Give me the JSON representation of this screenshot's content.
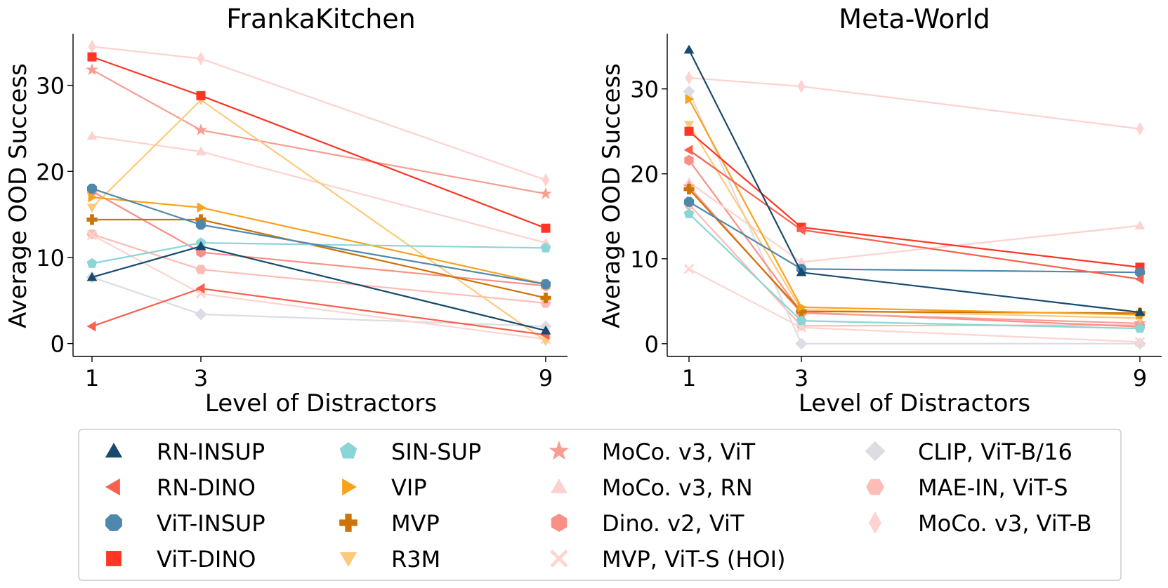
{
  "chart_data": [
    {
      "type": "line",
      "title": "FrankaKitchen",
      "xlabel": "Level of Distractors",
      "ylabel": "Average OOD Success",
      "x": [
        1,
        3,
        9
      ],
      "x_tick_labels": [
        "1",
        "3",
        "9"
      ],
      "y_ticks": [
        0,
        10,
        20,
        30
      ],
      "y_tick_labels": [
        "0",
        "10",
        "20",
        "30"
      ],
      "ylim": [
        -1.5,
        36
      ],
      "series": [
        {
          "name": "RN-INSUP",
          "values": [
            7.7,
            11.3,
            1.5
          ]
        },
        {
          "name": "RN-DINO",
          "values": [
            2.0,
            6.4,
            1.0
          ]
        },
        {
          "name": "ViT-INSUP",
          "values": [
            18.0,
            13.8,
            6.9
          ]
        },
        {
          "name": "ViT-DINO",
          "values": [
            33.3,
            28.8,
            13.4
          ]
        },
        {
          "name": "SIN-SUP",
          "values": [
            9.3,
            11.7,
            11.1
          ]
        },
        {
          "name": "VIP",
          "values": [
            17.0,
            15.8,
            6.9
          ]
        },
        {
          "name": "MVP",
          "values": [
            14.4,
            14.4,
            5.3
          ]
        },
        {
          "name": "R3M",
          "values": [
            15.8,
            28.3,
            0.3
          ]
        },
        {
          "name": "MoCo. v3, ViT",
          "values": [
            31.8,
            24.8,
            17.4
          ]
        },
        {
          "name": "MoCo. v3, RN",
          "values": [
            24.1,
            22.3,
            11.7
          ]
        },
        {
          "name": "Dino. v2, ViT",
          "values": [
            17.7,
            10.6,
            6.7
          ]
        },
        {
          "name": "MVP, ViT-S (HOI)",
          "values": [
            12.6,
            5.8,
            0.5
          ]
        },
        {
          "name": "CLIP, ViT-B/16",
          "values": [
            7.7,
            3.4,
            2.0
          ]
        },
        {
          "name": "MAE-IN, ViT-S",
          "values": [
            12.7,
            8.6,
            4.7
          ]
        },
        {
          "name": "MoCo. v3, ViT-B",
          "values": [
            34.5,
            33.1,
            19.0
          ]
        }
      ]
    },
    {
      "type": "line",
      "title": "Meta-World",
      "xlabel": "Level of Distractors",
      "ylabel": "Average OOD Success",
      "x": [
        1,
        3,
        9
      ],
      "x_tick_labels": [
        "1",
        "3",
        "9"
      ],
      "y_ticks": [
        0,
        10,
        20,
        30
      ],
      "y_tick_labels": [
        "0",
        "10",
        "20",
        "30"
      ],
      "ylim": [
        -1.5,
        36.5
      ],
      "series": [
        {
          "name": "RN-INSUP",
          "values": [
            34.6,
            8.4,
            3.7
          ]
        },
        {
          "name": "RN-DINO",
          "values": [
            22.8,
            13.4,
            7.6
          ]
        },
        {
          "name": "ViT-INSUP",
          "values": [
            16.7,
            8.8,
            8.4
          ]
        },
        {
          "name": "ViT-DINO",
          "values": [
            25.0,
            13.7,
            9.0
          ]
        },
        {
          "name": "SIN-SUP",
          "values": [
            15.3,
            2.7,
            1.8
          ]
        },
        {
          "name": "VIP",
          "values": [
            28.8,
            4.3,
            3.4
          ]
        },
        {
          "name": "MVP",
          "values": [
            18.2,
            3.8,
            3.6
          ]
        },
        {
          "name": "R3M",
          "values": [
            25.8,
            4.0,
            3.0
          ]
        },
        {
          "name": "MoCo. v3, ViT",
          "values": [
            18.5,
            3.6,
            2.4
          ]
        },
        {
          "name": "MoCo. v3, RN",
          "values": [
            19.0,
            9.6,
            13.9
          ]
        },
        {
          "name": "Dino. v2, ViT",
          "values": [
            21.6,
            3.7,
            2.0
          ]
        },
        {
          "name": "MVP, ViT-S (HOI)",
          "values": [
            8.8,
            1.9,
            0.2
          ]
        },
        {
          "name": "CLIP, ViT-B/16",
          "values": [
            29.7,
            0.0,
            0.0
          ]
        },
        {
          "name": "MAE-IN, ViT-S",
          "values": [
            16.4,
            2.1,
            2.2
          ]
        },
        {
          "name": "MoCo. v3, ViT-B",
          "values": [
            31.3,
            30.3,
            25.3
          ]
        }
      ]
    }
  ],
  "legend": {
    "placement": "bottom",
    "columns": 4,
    "entries": [
      {
        "label": "RN-INSUP",
        "color": "#174a6e",
        "marker": "triangle-up"
      },
      {
        "label": "RN-DINO",
        "color": "#f9604d",
        "marker": "triangle-left"
      },
      {
        "label": "ViT-INSUP",
        "color": "#4f88ad",
        "marker": "octagon"
      },
      {
        "label": "ViT-DINO",
        "color": "#ff3526",
        "marker": "square"
      },
      {
        "label": "SIN-SUP",
        "color": "#8ad5d6",
        "marker": "pentagon"
      },
      {
        "label": "VIP",
        "color": "#f9a21d",
        "marker": "triangle-right"
      },
      {
        "label": "MVP",
        "color": "#cc7408",
        "marker": "plus"
      },
      {
        "label": "R3M",
        "color": "#fdca7c",
        "marker": "triangle-down"
      },
      {
        "label": "MoCo. v3, ViT",
        "color": "#f89d91",
        "marker": "star"
      },
      {
        "label": "MoCo. v3, RN",
        "color": "#fdd1cf",
        "marker": "triangle-up"
      },
      {
        "label": "Dino. v2, ViT",
        "color": "#f99086",
        "marker": "hexagon"
      },
      {
        "label": "MVP, ViT-S (HOI)",
        "color": "#fdd4d1",
        "marker": "x"
      },
      {
        "label": "CLIP, ViT-B/16",
        "color": "#dcdde3",
        "marker": "diamond"
      },
      {
        "label": "MAE-IN, ViT-S",
        "color": "#fdbcb6",
        "marker": "hexagon-flat"
      },
      {
        "label": "MoCo. v3, ViT-B",
        "color": "#fdd2d0",
        "marker": "thin-diamond"
      }
    ]
  }
}
